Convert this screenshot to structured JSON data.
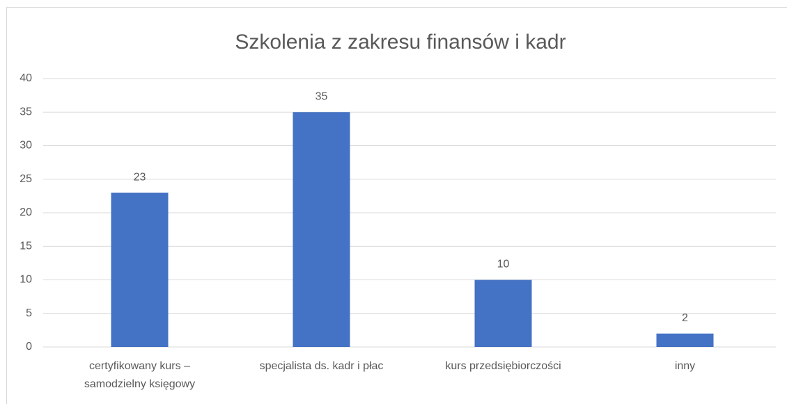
{
  "chart_data": {
    "type": "bar",
    "title": "Szkolenia z zakresu finansów i kadr",
    "categories": [
      "certyfikowany kurs – samodzielny księgowy",
      "specjalista ds. kadr i płac",
      "kurs przedsiębiorczości",
      "inny"
    ],
    "values": [
      23,
      35,
      10,
      2
    ],
    "color": "#4472c4",
    "ylim": [
      0,
      40
    ],
    "yticks": [
      0,
      5,
      10,
      15,
      20,
      25,
      30,
      35,
      40
    ],
    "grid": true
  }
}
